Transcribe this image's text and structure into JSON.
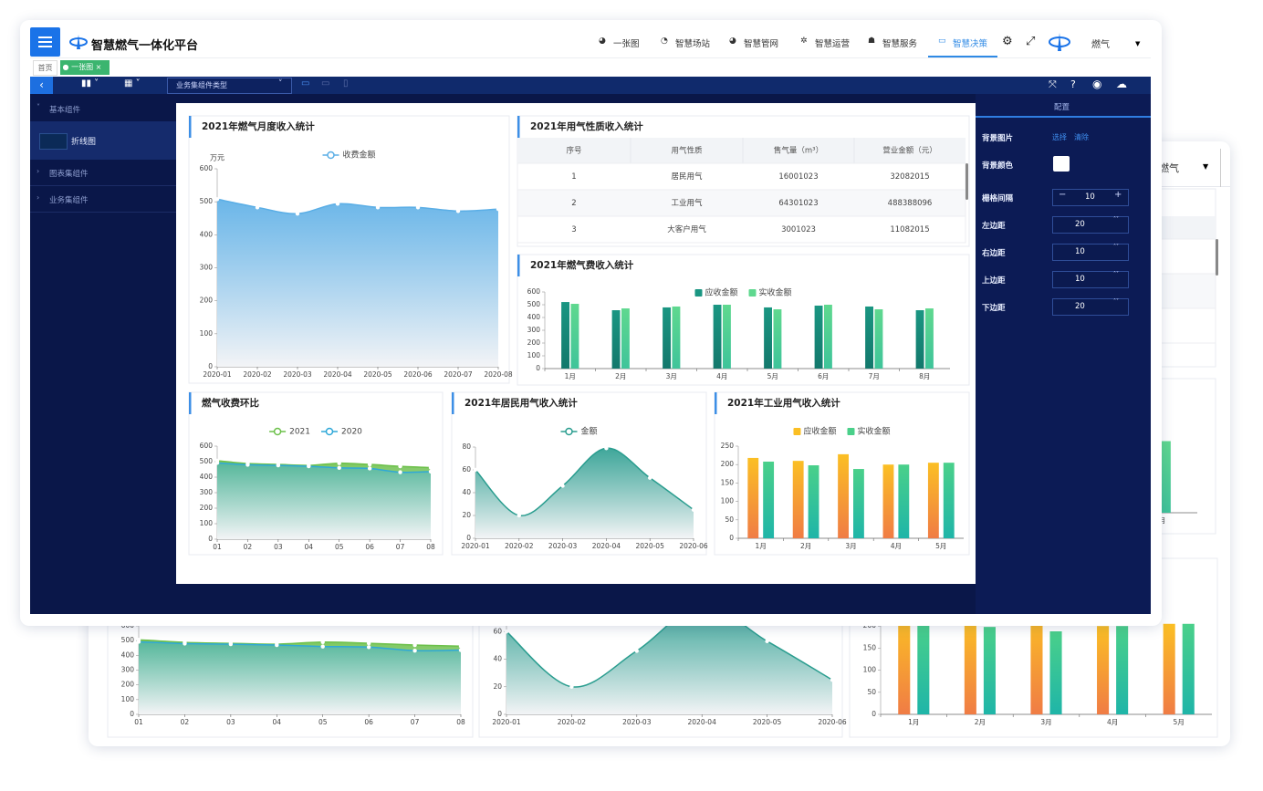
{
  "header": {
    "title": "智慧燃气一体化平台",
    "nav": [
      "一张图",
      "智慧场站",
      "智慧管网",
      "智慧运营",
      "智慧服务",
      "智慧决策"
    ],
    "active_nav": 5,
    "user": "燃气"
  },
  "tabs": [
    "首页",
    "一张图"
  ],
  "toolbar": {
    "select_placeholder": "业务集组件类型"
  },
  "sidebar": {
    "groups": [
      "基本组件",
      "图表集组件",
      "业务集组件"
    ],
    "items": [
      "折线图"
    ]
  },
  "config": {
    "title": "配置",
    "background_image": {
      "label": "背景图片",
      "actions": [
        "选择",
        "清除"
      ]
    },
    "background_color": {
      "label": "背景颜色"
    },
    "fields": [
      {
        "label": "栅格间隔",
        "value": 10
      },
      {
        "label": "左边距",
        "value": 20
      },
      {
        "label": "右边距",
        "value": 10
      },
      {
        "label": "上边距",
        "value": 10
      },
      {
        "label": "下边距",
        "value": 20
      }
    ]
  },
  "chart_data": [
    {
      "type": "area",
      "title": "2021年燃气月度收入统计",
      "y_unit": "万元",
      "x": [
        "2020-01",
        "2020-02",
        "2020-03",
        "2020-04",
        "2020-05",
        "2020-06",
        "2020-07",
        "2020-08"
      ],
      "series": [
        {
          "name": "收费金额",
          "color": "#5aaee6",
          "values": [
            508,
            483,
            464,
            494,
            483,
            483,
            472,
            478
          ]
        }
      ],
      "ylim": [
        0,
        600
      ],
      "yticks": [
        0,
        100,
        200,
        300,
        400,
        500,
        600
      ]
    },
    {
      "type": "table",
      "title": "2021年用气性质收入统计",
      "columns": [
        "序号",
        "用气性质",
        "售气量（m³）",
        "营业金额（元）"
      ],
      "rows": [
        [
          "1",
          "居民用气",
          "16001023",
          "32082015"
        ],
        [
          "2",
          "工业用气",
          "64301023",
          "488388096"
        ],
        [
          "3",
          "大客户用气",
          "3001023",
          "11082015"
        ]
      ]
    },
    {
      "type": "bar",
      "title": "2021年燃气费收入统计",
      "categories": [
        "1月",
        "2月",
        "3月",
        "4月",
        "5月",
        "6月",
        "7月",
        "8月"
      ],
      "series": [
        {
          "name": "应收金额",
          "color": "#1a9682",
          "color_end": "#13786c",
          "values": [
            521,
            457,
            479,
            500,
            479,
            493,
            486,
            457
          ]
        },
        {
          "name": "实收金额",
          "color": "#5fd88f",
          "color_end": "#3fc49a",
          "values": [
            507,
            471,
            486,
            500,
            464,
            500,
            464,
            471
          ]
        }
      ],
      "ylim": [
        0,
        600
      ],
      "yticks": [
        0,
        100,
        200,
        300,
        400,
        500,
        600
      ]
    },
    {
      "type": "area",
      "title": "燃气收费环比",
      "x": [
        "01",
        "02",
        "03",
        "04",
        "05",
        "06",
        "07",
        "08"
      ],
      "series": [
        {
          "name": "2021",
          "color": "#6cc04a",
          "values": [
            506,
            488,
            482,
            476,
            490,
            482,
            470,
            462
          ]
        },
        {
          "name": "2020",
          "color": "#2fa8d8",
          "values": [
            492,
            480,
            476,
            470,
            460,
            456,
            432,
            436
          ]
        }
      ],
      "ylim": [
        0,
        600
      ],
      "yticks": [
        0,
        100,
        200,
        300,
        400,
        500,
        600
      ]
    },
    {
      "type": "area",
      "title": "2021年居民用气收入统计",
      "x": [
        "2020-01",
        "2020-02",
        "2020-03",
        "2020-04",
        "2020-05",
        "2020-06"
      ],
      "series": [
        {
          "name": "金额",
          "color": "#2a9d8f",
          "values": [
            60,
            20,
            46,
            79,
            53,
            25
          ]
        }
      ],
      "ylim": [
        0,
        80
      ],
      "yticks": [
        0,
        20,
        40,
        60,
        80
      ]
    },
    {
      "type": "bar",
      "title": "2021年工业用气收入统计",
      "categories": [
        "1月",
        "2月",
        "3月",
        "4月",
        "5月"
      ],
      "series": [
        {
          "name": "应收金额",
          "color": "#fbbf24",
          "color_end": "#f07c45",
          "values": [
            218,
            210,
            228,
            200,
            205
          ]
        },
        {
          "name": "实收金额",
          "color": "#4ad08a",
          "color_end": "#1fb5a8",
          "values": [
            208,
            198,
            188,
            200,
            205
          ]
        }
      ],
      "ylim": [
        0,
        250
      ],
      "yticks": [
        0,
        50,
        100,
        150,
        200,
        250
      ]
    }
  ]
}
